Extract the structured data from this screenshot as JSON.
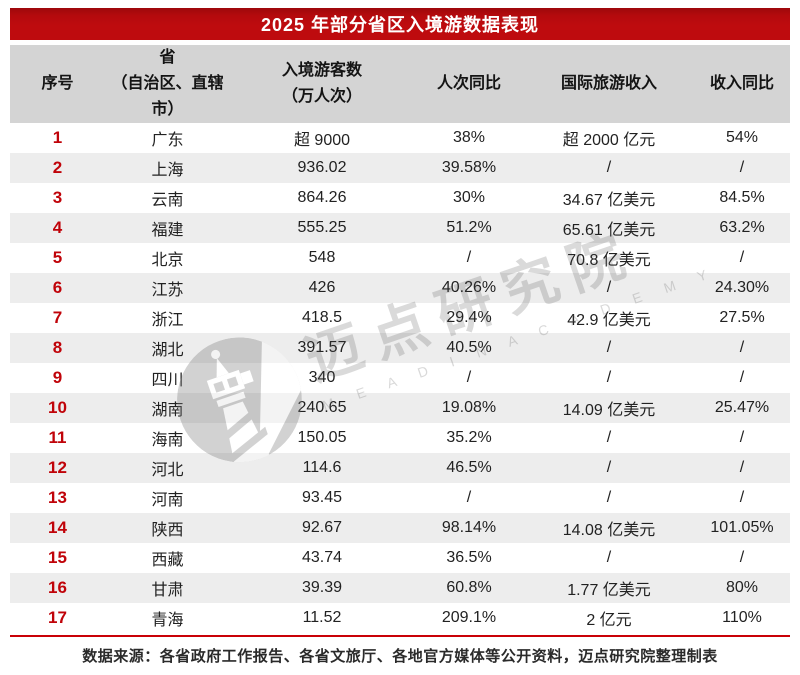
{
  "ui": {
    "title": "2025 年部分省区入境游数据表现",
    "headers_display": [
      "序号",
      "省\n（自治区、直辖市）",
      "入境游客数\n（万人次）",
      "人次同比",
      "国际旅游收入",
      "收入同比"
    ],
    "footer_source": "数据来源：各省政府工作报告、各省文旅厅、各地官方媒体等公开资料，迈点研究院整理制表",
    "watermark_cn": "迈点研究院",
    "watermark_en": "M E A D I N   A C A D E M Y"
  },
  "chart_data": {
    "type": "table",
    "title": "2025 年部分省区入境游数据表现",
    "columns": [
      "序号",
      "省（自治区、直辖市）",
      "入境游客数（万人次）",
      "人次同比",
      "国际旅游收入",
      "收入同比"
    ],
    "rows": [
      [
        "1",
        "广东",
        "超 9000",
        "38%",
        "超 2000 亿元",
        "54%"
      ],
      [
        "2",
        "上海",
        "936.02",
        "39.58%",
        "/",
        "/"
      ],
      [
        "3",
        "云南",
        "864.26",
        "30%",
        "34.67 亿美元",
        "84.5%"
      ],
      [
        "4",
        "福建",
        "555.25",
        "51.2%",
        "65.61 亿美元",
        "63.2%"
      ],
      [
        "5",
        "北京",
        "548",
        "/",
        "70.8 亿美元",
        "/"
      ],
      [
        "6",
        "江苏",
        "426",
        "40.26%",
        "/",
        "24.30%"
      ],
      [
        "7",
        "浙江",
        "418.5",
        "29.4%",
        "42.9 亿美元",
        "27.5%"
      ],
      [
        "8",
        "湖北",
        "391.57",
        "40.5%",
        "/",
        "/"
      ],
      [
        "9",
        "四川",
        "340",
        "/",
        "/",
        "/"
      ],
      [
        "10",
        "湖南",
        "240.65",
        "19.08%",
        "14.09 亿美元",
        "25.47%"
      ],
      [
        "11",
        "海南",
        "150.05",
        "35.2%",
        "/",
        "/"
      ],
      [
        "12",
        "河北",
        "114.6",
        "46.5%",
        "/",
        "/"
      ],
      [
        "13",
        "河南",
        "93.45",
        "/",
        "/",
        "/"
      ],
      [
        "14",
        "陕西",
        "92.67",
        "98.14%",
        "14.08 亿美元",
        "101.05%"
      ],
      [
        "15",
        "西藏",
        "43.74",
        "36.5%",
        "/",
        "/"
      ],
      [
        "16",
        "甘肃",
        "39.39",
        "60.8%",
        "1.77 亿美元",
        "80%"
      ],
      [
        "17",
        "青海",
        "11.52",
        "209.1%",
        "2 亿元",
        "110%"
      ]
    ]
  },
  "colors": {
    "title_bar_red": "#BE0B0E",
    "row_number_red": "#C00309",
    "divider_red": "#C90006",
    "header_gray": "#D4D4D4",
    "stripe_gray": "#EDEDED"
  }
}
